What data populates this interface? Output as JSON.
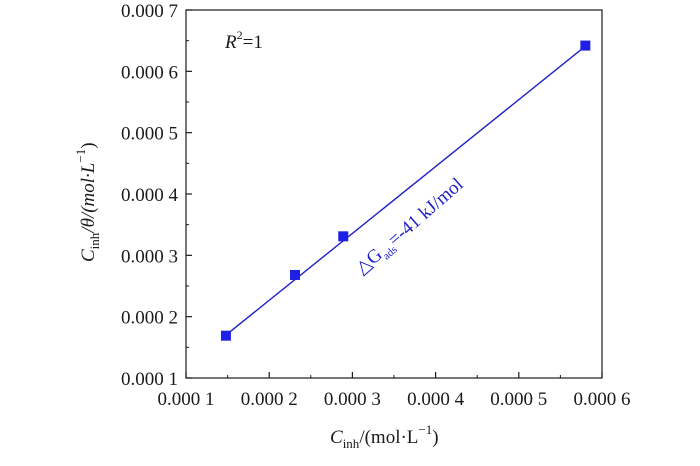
{
  "chart_data": {
    "type": "scatter",
    "x_ticks": [
      "0.000 1",
      "0.000 2",
      "0.000 3",
      "0.000 4",
      "0.000 5",
      "0.000 6"
    ],
    "y_ticks": [
      "0.000 1",
      "0.000 2",
      "0.000 3",
      "0.000 4",
      "0.000 5",
      "0.000 6",
      "0.000 7"
    ],
    "xlim": [
      0.0001,
      0.0006
    ],
    "ylim": [
      0.0001,
      0.0007
    ],
    "xlabel": {
      "main": "C",
      "sub": "inh",
      "rest": "/(mol·L",
      "sup": "−1",
      "close": ")"
    },
    "ylabel": {
      "main": "C",
      "sub": "inh",
      "mid": "/θ/(mol·L",
      "sup": "−1",
      "close": ")"
    },
    "series": [
      {
        "points": [
          {
            "x": 0.000148,
            "y": 0.000169
          },
          {
            "x": 0.000231,
            "y": 0.000268
          },
          {
            "x": 0.000289,
            "y": 0.000331
          },
          {
            "x": 0.00058,
            "y": 0.000642
          }
        ],
        "color": "#1f1fe6",
        "marker": "square"
      }
    ],
    "fit_line": {
      "x": [
        0.000148,
        0.00058
      ],
      "y": [
        0.00017,
        0.000641
      ],
      "color": "#1f1fc8"
    },
    "annotations": {
      "r2": {
        "main": "R",
        "sup": "2",
        "rest": "=1"
      },
      "equation": {
        "delta": "△G",
        "sub": "ads",
        "rest": "=-41 kJ/mol"
      }
    }
  }
}
